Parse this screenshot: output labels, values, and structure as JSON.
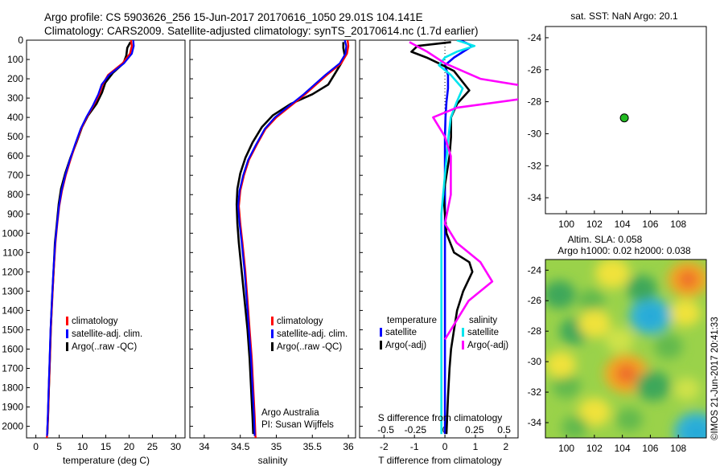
{
  "header": {
    "line1": "Argo profile: CS 5903626_256 15-Jun-2017 20170616_1050 29.01S 104.141E",
    "line2": "Climatology: CARS2009. Satellite-adjusted climatology: synTS_20170614.nc (1.7d earlier)"
  },
  "colors": {
    "climatology": "#ff0000",
    "satellite": "#0000ff",
    "argo": "#000000",
    "sal_satellite": "#00e5ee",
    "sal_argo": "#ff00ff",
    "float_marker": "#22bb22"
  },
  "chart_data": [
    {
      "type": "line",
      "panel": "temperature",
      "xlabel": "temperature (deg C)",
      "ylabel": "",
      "xlim": [
        -2,
        32
      ],
      "ylim": [
        2060,
        0
      ],
      "xticks": [
        0,
        5,
        10,
        15,
        20,
        25,
        30
      ],
      "yticks": [
        0,
        100,
        200,
        300,
        400,
        500,
        600,
        700,
        800,
        900,
        1000,
        1100,
        1200,
        1300,
        1400,
        1500,
        1600,
        1700,
        1800,
        1900,
        2000
      ],
      "legend": [
        "climatology",
        "satellite-adj. clim.",
        "Argo(..raw -QC)"
      ],
      "legend_position": "lower-right",
      "series": [
        {
          "name": "climatology",
          "color": "#ff0000",
          "x": [
            20.4,
            20.6,
            20.2,
            18.6,
            15.5,
            14.3,
            13.6,
            12.3,
            10.9,
            9.7,
            8.5,
            7.4,
            6.4,
            5.6,
            5.0,
            4.6,
            4.2,
            3.8,
            3.5,
            3.2,
            3.0,
            2.8,
            2.6,
            2.4,
            2.3
          ],
          "y": [
            0,
            30,
            70,
            120,
            180,
            230,
            280,
            340,
            400,
            460,
            540,
            620,
            700,
            780,
            860,
            950,
            1050,
            1200,
            1350,
            1500,
            1650,
            1800,
            1950,
            2050,
            2070
          ]
        },
        {
          "name": "satellite-adj. clim.",
          "color": "#0000ff",
          "x": [
            20.9,
            21.0,
            20.6,
            18.9,
            15.7,
            14.1,
            13.4,
            12.2,
            10.8,
            9.6,
            8.4,
            7.3,
            6.3,
            5.5,
            4.95,
            4.55,
            4.15,
            3.75,
            3.45,
            3.15,
            2.95,
            2.75,
            2.55,
            2.4
          ],
          "y": [
            0,
            30,
            70,
            120,
            180,
            230,
            280,
            340,
            400,
            460,
            540,
            620,
            700,
            780,
            860,
            950,
            1050,
            1200,
            1350,
            1500,
            1650,
            1800,
            1950,
            2050
          ]
        },
        {
          "name": "Argo(..raw -QC)",
          "color": "#000000",
          "x": [
            20.3,
            19.6,
            19.4,
            18.8,
            16.5,
            14.9,
            14.2,
            13.0,
            11.2,
            9.9,
            8.7,
            7.4,
            6.3,
            5.4,
            4.9,
            4.5,
            4.1,
            3.8,
            3.45,
            3.2,
            3.0,
            2.8,
            2.6,
            2.45
          ],
          "y": [
            10,
            40,
            80,
            120,
            170,
            220,
            270,
            330,
            390,
            450,
            530,
            610,
            690,
            770,
            850,
            950,
            1050,
            1200,
            1350,
            1500,
            1650,
            1800,
            1950,
            2040
          ]
        }
      ]
    },
    {
      "type": "line",
      "panel": "salinity",
      "xlabel": "salinity",
      "ylabel": "",
      "xlim": [
        33.8,
        36.1
      ],
      "ylim": [
        2060,
        0
      ],
      "xticks": [
        34,
        34.5,
        35,
        35.5,
        36
      ],
      "legend": [
        "climatology",
        "satellite-adj. clim.",
        "Argo(..raw -QC)"
      ],
      "legend_position": "lower-right",
      "annotations": [
        "Argo Australia",
        "PI: Susan Wijffels"
      ],
      "series": [
        {
          "name": "climatology",
          "color": "#ff0000",
          "x": [
            35.99,
            36.0,
            35.98,
            35.9,
            35.7,
            35.55,
            35.4,
            35.2,
            35.0,
            34.85,
            34.73,
            34.62,
            34.55,
            34.5,
            34.48,
            34.5,
            34.53,
            34.57,
            34.6,
            34.63,
            34.66,
            34.68,
            34.7,
            34.71,
            34.72
          ],
          "y": [
            0,
            30,
            70,
            120,
            180,
            230,
            280,
            340,
            400,
            460,
            540,
            620,
            700,
            780,
            860,
            950,
            1050,
            1200,
            1350,
            1500,
            1650,
            1800,
            1950,
            2050,
            2070
          ]
        },
        {
          "name": "satellite-adj. clim.",
          "color": "#0000ff",
          "x": [
            35.95,
            35.97,
            35.96,
            35.88,
            35.68,
            35.53,
            35.38,
            35.18,
            34.98,
            34.84,
            34.72,
            34.61,
            34.54,
            34.49,
            34.47,
            34.49,
            34.52,
            34.56,
            34.59,
            34.62,
            34.65,
            34.67,
            34.69,
            34.7
          ],
          "y": [
            0,
            30,
            70,
            120,
            180,
            230,
            280,
            340,
            400,
            460,
            540,
            620,
            700,
            780,
            860,
            950,
            1050,
            1200,
            1350,
            1500,
            1650,
            1800,
            1950,
            2050
          ]
        },
        {
          "name": "Argo(..raw -QC)",
          "color": "#000000",
          "x": [
            35.93,
            35.93,
            35.95,
            35.9,
            35.82,
            35.72,
            35.5,
            35.2,
            34.95,
            34.8,
            34.67,
            34.57,
            34.5,
            34.46,
            34.45,
            34.46,
            34.48,
            34.52,
            34.56,
            34.6,
            34.63,
            34.65,
            34.67,
            34.68
          ],
          "y": [
            10,
            40,
            80,
            120,
            170,
            230,
            280,
            330,
            390,
            450,
            530,
            610,
            690,
            770,
            850,
            950,
            1050,
            1200,
            1350,
            1500,
            1650,
            1800,
            1950,
            2040
          ]
        }
      ]
    },
    {
      "type": "line",
      "panel": "difference",
      "xlabel": "T difference from climatology",
      "xlabel_top": "S difference from climatology",
      "xlim": [
        -2.8,
        2.4
      ],
      "ylim": [
        2060,
        0
      ],
      "xticks_T": [
        -2,
        -1,
        0,
        1,
        2
      ],
      "xticks_S": [
        -0.5,
        -0.25,
        0,
        0.25,
        0.5
      ],
      "legend_temperature_title": "temperature",
      "legend_temperature": [
        "satellite",
        "Argo(-adj)"
      ],
      "legend_salinity_title": "salinity",
      "legend_salinity": [
        "satellite",
        "Argo(-adj)"
      ],
      "series": [
        {
          "name": "satellite",
          "group": "temperature",
          "color": "#0000ff",
          "x": [
            0.5,
            0.9,
            0.6,
            0.3,
            0.0,
            0.1,
            0.1,
            0.05,
            0.02,
            0.0,
            0.0,
            0.0,
            0.0,
            0.0,
            0.0,
            0.0
          ],
          "y": [
            0,
            30,
            60,
            90,
            130,
            180,
            250,
            320,
            400,
            500,
            700,
            900,
            1200,
            1500,
            1800,
            2040
          ]
        },
        {
          "name": "Argo(-adj)",
          "group": "temperature",
          "color": "#000000",
          "x": [
            0.2,
            -0.9,
            -1.1,
            -0.6,
            -0.2,
            0.3,
            0.8,
            0.4,
            0.2,
            0.2,
            0.15,
            0.05,
            -0.05,
            0.0,
            0.05,
            0.3,
            0.8,
            0.9,
            0.6,
            0.4,
            0.3,
            0.2,
            0.15,
            0.1,
            0.05
          ],
          "y": [
            10,
            30,
            60,
            90,
            120,
            160,
            260,
            330,
            400,
            500,
            600,
            700,
            800,
            900,
            1000,
            1100,
            1150,
            1200,
            1300,
            1400,
            1500,
            1600,
            1700,
            1850,
            2040
          ]
        },
        {
          "name": "satellite",
          "group": "salinity",
          "color": "#00e5ee",
          "x": [
            0.1,
            0.25,
            0.1,
            0.0,
            -0.05,
            0.05,
            0.15,
            0.1,
            0.05,
            0.03,
            0.0,
            -0.03,
            -0.03,
            -0.03,
            -0.03,
            -0.03
          ],
          "y": [
            0,
            30,
            60,
            90,
            130,
            180,
            250,
            320,
            400,
            500,
            700,
            900,
            1200,
            1500,
            1800,
            2040
          ]
        },
        {
          "name": "Argo(-adj)",
          "group": "salinity",
          "color": "#ff00ff",
          "x": [
            -0.3,
            -0.15,
            0.0,
            0.3,
            0.9,
            0.7,
            0.1,
            -0.1,
            0.0,
            0.05,
            0.05,
            0.0,
            0.1,
            0.3,
            0.4,
            0.2,
            0.1,
            0.0
          ],
          "y": [
            10,
            60,
            120,
            200,
            260,
            300,
            350,
            400,
            500,
            600,
            800,
            950,
            1050,
            1150,
            1250,
            1350,
            1450,
            1550
          ]
        }
      ]
    },
    {
      "type": "scatter",
      "panel": "sst-map",
      "title": "sat. SST: NaN Argo: 20.1",
      "xlim": [
        98.5,
        110
      ],
      "ylim": [
        -35,
        -23.3
      ],
      "xticks": [
        100,
        102,
        104,
        106,
        108
      ],
      "yticks": [
        -24,
        -26,
        -28,
        -30,
        -32,
        -34
      ],
      "points": [
        {
          "x": 104.14,
          "y": -29.01
        }
      ]
    },
    {
      "type": "heatmap",
      "panel": "sla-map",
      "title": "Altim. SLA: 0.058",
      "subtitle": "Argo h1000: 0.02 h2000: 0.038",
      "xlim": [
        98.5,
        110
      ],
      "ylim": [
        -35,
        -23.3
      ],
      "xticks": [
        100,
        102,
        104,
        106,
        108
      ],
      "yticks": [
        -24,
        -26,
        -28,
        -30,
        -32,
        -34
      ],
      "blobs": [
        {
          "x": 99.5,
          "y": -25.6,
          "v": -0.06
        },
        {
          "x": 100.6,
          "y": -28.0,
          "v": -0.05
        },
        {
          "x": 100.0,
          "y": -31.6,
          "v": -0.04
        },
        {
          "x": 101.8,
          "y": -26.0,
          "v": -0.03
        },
        {
          "x": 102.0,
          "y": -27.5,
          "v": 0.06
        },
        {
          "x": 103.3,
          "y": -24.2,
          "v": 0.07
        },
        {
          "x": 103.8,
          "y": -28.6,
          "v": 0.04
        },
        {
          "x": 104.3,
          "y": -30.8,
          "v": 0.12
        },
        {
          "x": 106.0,
          "y": -27.0,
          "v": -0.11
        },
        {
          "x": 105.4,
          "y": -25.2,
          "v": -0.05
        },
        {
          "x": 107.3,
          "y": -29.0,
          "v": -0.04
        },
        {
          "x": 108.7,
          "y": -24.6,
          "v": 0.1
        },
        {
          "x": 108.5,
          "y": -26.8,
          "v": 0.05
        },
        {
          "x": 106.2,
          "y": -31.6,
          "v": -0.07
        },
        {
          "x": 108.6,
          "y": -31.8,
          "v": 0.03
        },
        {
          "x": 102.0,
          "y": -33.3,
          "v": 0.06
        },
        {
          "x": 104.5,
          "y": -33.8,
          "v": -0.03
        },
        {
          "x": 109.3,
          "y": -34.6,
          "v": -0.12
        },
        {
          "x": 100.6,
          "y": -34.3,
          "v": -0.03
        },
        {
          "x": 99.6,
          "y": -30.2,
          "v": 0.05
        }
      ]
    }
  ],
  "footer": {
    "credit": "©IMOS 21-Jun-2017 20:41:33"
  }
}
